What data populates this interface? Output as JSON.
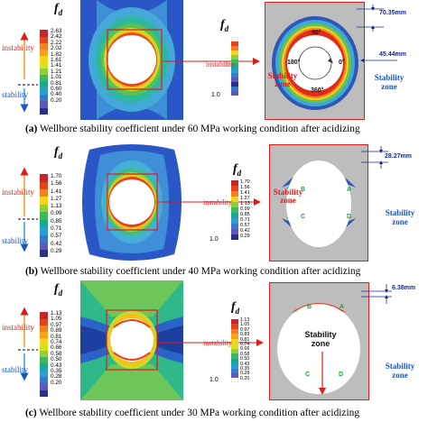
{
  "legend_title_main": "f",
  "legend_title_sub": "d",
  "labels": {
    "instability": "instability",
    "stability": "stability",
    "stability_zone": "Stability zone",
    "stability_zone_line1": "Stability",
    "stability_zone_line2": "zone",
    "unity": "1.0"
  },
  "panels": [
    {
      "id": "a",
      "caption_prefix": "(a)",
      "caption_text": "Wellbore stability coefficient under 60 MPa working condition after acidizing",
      "scale_ticks": [
        "2.63",
        "2.42",
        "2.22",
        "2.02",
        "1.82",
        "1.61",
        "1.41",
        "1.21",
        "1.01",
        "0.81",
        "0.60",
        "0.40",
        "0.20"
      ],
      "measurement_1": "70.35mm",
      "measurement_2": "45.44mm",
      "angles": [
        "90°",
        "180°",
        "0°",
        "360°"
      ]
    },
    {
      "id": "b",
      "caption_prefix": "(b)",
      "caption_text": "Wellbore stability coefficient under 40 MPa working condition after acidizing",
      "scale_ticks": [
        "1.70",
        "1.56",
        "1.41",
        "1.27",
        "1.13",
        "0.99",
        "0.85",
        "0.71",
        "0.57",
        "0.42",
        "0.29"
      ],
      "measurement_1": "28.27mm",
      "points": [
        "B",
        "A",
        "C",
        "D"
      ]
    },
    {
      "id": "c",
      "caption_prefix": "(c)",
      "caption_text": "Wellbore stability coefficient under 30 MPa working condition after acidizing",
      "scale_ticks": [
        "1.13",
        "1.05",
        "0.97",
        "0.89",
        "0.81",
        "0.74",
        "0.66",
        "0.58",
        "0.50",
        "0.43",
        "0.35",
        "0.28",
        "0.20"
      ],
      "measurement_1": "6.38mm",
      "points": [
        "B",
        "A",
        "C",
        "D"
      ]
    }
  ],
  "colors": {
    "panel_border": "#e31a1a",
    "field_blue": "#1f4fbf",
    "hole_grey": "#c0c0c0"
  }
}
